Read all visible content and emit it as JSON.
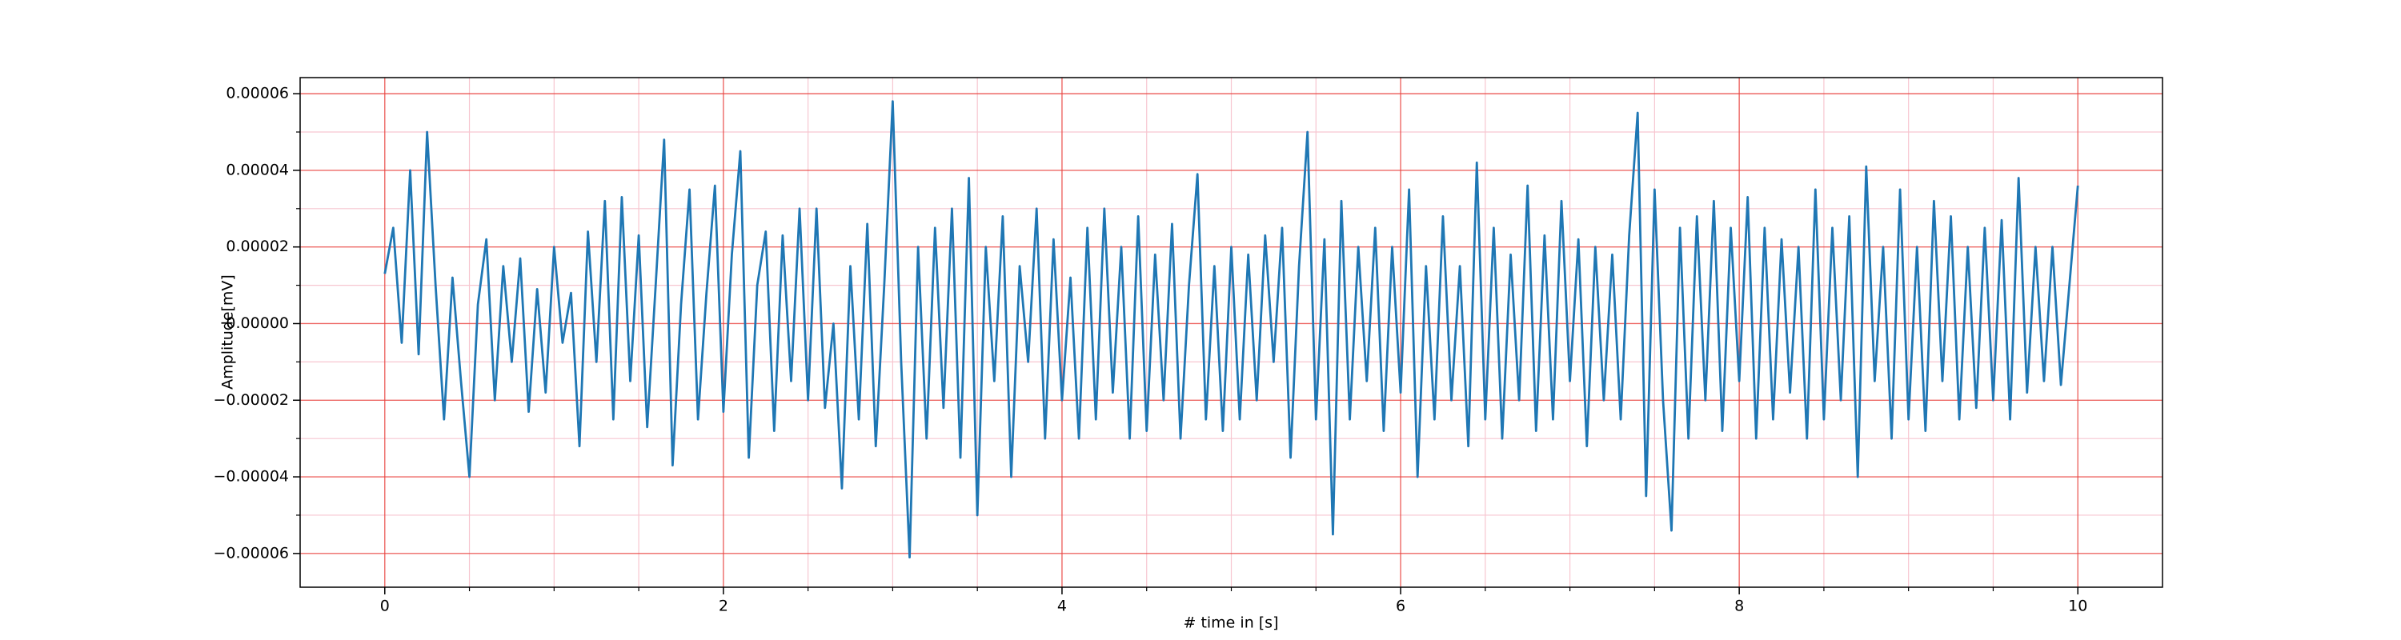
{
  "chart_data": {
    "type": "line",
    "xlabel": "# time in [s]",
    "ylabel": "Amplitude[mV]",
    "color": "#1f77b4",
    "grid": true,
    "grid_color": "#e8423f",
    "minor_grid_color": "#f7c6d0",
    "xlim": [
      -0.5,
      10.5
    ],
    "xticks": [
      0,
      2,
      4,
      6,
      8,
      10
    ],
    "xminorticks": [
      0.5,
      1,
      1.5,
      2.5,
      3,
      3.5,
      4.5,
      5,
      5.5,
      6.5,
      7,
      7.5,
      8.5,
      9,
      9.5
    ],
    "ylim": [
      -6.88e-05,
      6.42e-05
    ],
    "yticks": [
      {
        "value": -6e-05,
        "label": "−0.00006"
      },
      {
        "value": -4e-05,
        "label": "−0.00004"
      },
      {
        "value": -2e-05,
        "label": "−0.00002"
      },
      {
        "value": 0,
        "label": "0.00000"
      },
      {
        "value": 2e-05,
        "label": "0.00002"
      },
      {
        "value": 4e-05,
        "label": "0.00004"
      },
      {
        "value": 6e-05,
        "label": "0.00006"
      }
    ],
    "yminorticks": [
      -5e-05,
      -3e-05,
      -1e-05,
      1e-05,
      3e-05,
      5e-05
    ],
    "x": [
      0,
      0.05,
      0.1,
      0.15,
      0.2,
      0.25,
      0.3,
      0.35,
      0.4,
      0.45,
      0.5,
      0.55,
      0.6,
      0.65,
      0.7,
      0.75,
      0.8,
      0.85,
      0.9,
      0.95,
      1,
      1.05,
      1.1,
      1.15,
      1.2,
      1.25,
      1.3,
      1.35,
      1.4,
      1.45,
      1.5,
      1.55,
      1.6,
      1.65,
      1.7,
      1.75,
      1.8,
      1.85,
      1.9,
      1.95,
      2,
      2.05,
      2.1,
      2.15,
      2.2,
      2.25,
      2.3,
      2.35,
      2.4,
      2.45,
      2.5,
      2.55,
      2.6,
      2.65,
      2.7,
      2.75,
      2.8,
      2.85,
      2.9,
      2.95,
      3,
      3.05,
      3.1,
      3.15,
      3.2,
      3.25,
      3.3,
      3.35,
      3.4,
      3.45,
      3.5,
      3.55,
      3.6,
      3.65,
      3.7,
      3.75,
      3.8,
      3.85,
      3.9,
      3.95,
      4,
      4.05,
      4.1,
      4.15,
      4.2,
      4.25,
      4.3,
      4.35,
      4.4,
      4.45,
      4.5,
      4.55,
      4.6,
      4.65,
      4.7,
      4.75,
      4.8,
      4.85,
      4.9,
      4.95,
      5,
      5.05,
      5.1,
      5.15,
      5.2,
      5.25,
      5.3,
      5.35,
      5.4,
      5.45,
      5.5,
      5.55,
      5.6,
      5.65,
      5.7,
      5.75,
      5.8,
      5.85,
      5.9,
      5.95,
      6,
      6.05,
      6.1,
      6.15,
      6.2,
      6.25,
      6.3,
      6.35,
      6.4,
      6.45,
      6.5,
      6.55,
      6.6,
      6.65,
      6.7,
      6.75,
      6.8,
      6.85,
      6.9,
      6.95,
      7,
      7.05,
      7.1,
      7.15,
      7.2,
      7.25,
      7.3,
      7.35,
      7.4,
      7.45,
      7.5,
      7.55,
      7.6,
      7.65,
      7.7,
      7.75,
      7.8,
      7.85,
      7.9,
      7.95,
      8,
      8.05,
      8.1,
      8.15,
      8.2,
      8.25,
      8.3,
      8.35,
      8.4,
      8.45,
      8.5,
      8.55,
      8.6,
      8.65,
      8.7,
      8.75,
      8.8,
      8.85,
      8.9,
      8.95,
      9,
      9.05,
      9.1,
      9.15,
      9.2,
      9.25,
      9.3,
      9.35,
      9.4,
      9.45,
      9.5,
      9.55,
      9.6,
      9.65,
      9.7,
      9.75,
      9.8,
      9.85,
      9.9,
      9.95,
      10
    ],
    "values": [
      1.3e-05,
      2.5e-05,
      -5e-06,
      4e-05,
      -8e-06,
      5e-05,
      1e-05,
      -2.5e-05,
      1.2e-05,
      -1.5e-05,
      -4e-05,
      5e-06,
      2.2e-05,
      -2e-05,
      1.5e-05,
      -1e-05,
      1.7e-05,
      -2.3e-05,
      9e-06,
      -1.8e-05,
      2e-05,
      -5e-06,
      8e-06,
      -3.2e-05,
      2.4e-05,
      -1e-05,
      3.2e-05,
      -2.5e-05,
      3.3e-05,
      -1.5e-05,
      2.3e-05,
      -2.7e-05,
      1e-05,
      4.8e-05,
      -3.7e-05,
      5e-06,
      3.5e-05,
      -2.5e-05,
      8e-06,
      3.6e-05,
      -2.3e-05,
      1.8e-05,
      4.5e-05,
      -3.5e-05,
      1e-05,
      2.4e-05,
      -2.8e-05,
      2.3e-05,
      -1.5e-05,
      3e-05,
      -2e-05,
      3e-05,
      -2.2e-05,
      0,
      -4.3e-05,
      1.5e-05,
      -2.5e-05,
      2.6e-05,
      -3.2e-05,
      1e-05,
      5.8e-05,
      -1e-05,
      -6.1e-05,
      2e-05,
      -3e-05,
      2.5e-05,
      -2.2e-05,
      3e-05,
      -3.5e-05,
      3.8e-05,
      -5e-05,
      2e-05,
      -1.5e-05,
      2.8e-05,
      -4e-05,
      1.5e-05,
      -1e-05,
      3e-05,
      -3e-05,
      2.2e-05,
      -2e-05,
      1.2e-05,
      -3e-05,
      2.5e-05,
      -2.5e-05,
      3e-05,
      -1.8e-05,
      2e-05,
      -3e-05,
      2.8e-05,
      -2.8e-05,
      1.8e-05,
      -2e-05,
      2.6e-05,
      -3e-05,
      1e-05,
      3.9e-05,
      -2.5e-05,
      1.5e-05,
      -2.8e-05,
      2e-05,
      -2.5e-05,
      1.8e-05,
      -2e-05,
      2.3e-05,
      -1e-05,
      2.5e-05,
      -3.5e-05,
      1.5e-05,
      5e-05,
      -2.5e-05,
      2.2e-05,
      -5.5e-05,
      3.2e-05,
      -2.5e-05,
      2e-05,
      -1.5e-05,
      2.5e-05,
      -2.8e-05,
      2e-05,
      -1.8e-05,
      3.5e-05,
      -4e-05,
      1.5e-05,
      -2.5e-05,
      2.8e-05,
      -2e-05,
      1.5e-05,
      -3.2e-05,
      4.2e-05,
      -2.5e-05,
      2.5e-05,
      -3e-05,
      1.8e-05,
      -2e-05,
      3.6e-05,
      -2.8e-05,
      2.3e-05,
      -2.5e-05,
      3.2e-05,
      -1.5e-05,
      2.2e-05,
      -3.2e-05,
      2e-05,
      -2e-05,
      1.8e-05,
      -2.5e-05,
      2.3e-05,
      5.5e-05,
      -4.5e-05,
      3.5e-05,
      -2e-05,
      -5.4e-05,
      2.5e-05,
      -3e-05,
      2.8e-05,
      -2e-05,
      3.2e-05,
      -2.8e-05,
      2.5e-05,
      -1.5e-05,
      3.3e-05,
      -3e-05,
      2.5e-05,
      -2.5e-05,
      2.2e-05,
      -1.8e-05,
      2e-05,
      -3e-05,
      3.5e-05,
      -2.5e-05,
      2.5e-05,
      -2e-05,
      2.8e-05,
      -4e-05,
      4.1e-05,
      -1.5e-05,
      2e-05,
      -3e-05,
      3.5e-05,
      -2.5e-05,
      2e-05,
      -2.8e-05,
      3.2e-05,
      -1.5e-05,
      2.8e-05,
      -2.5e-05,
      2e-05,
      -2.2e-05,
      2.5e-05,
      -2e-05,
      2.7e-05,
      -2.5e-05,
      3.8e-05,
      -1.8e-05,
      2e-05,
      -1.5e-05,
      2e-05,
      -1.6e-05,
      1e-05,
      3.6e-05
    ]
  }
}
